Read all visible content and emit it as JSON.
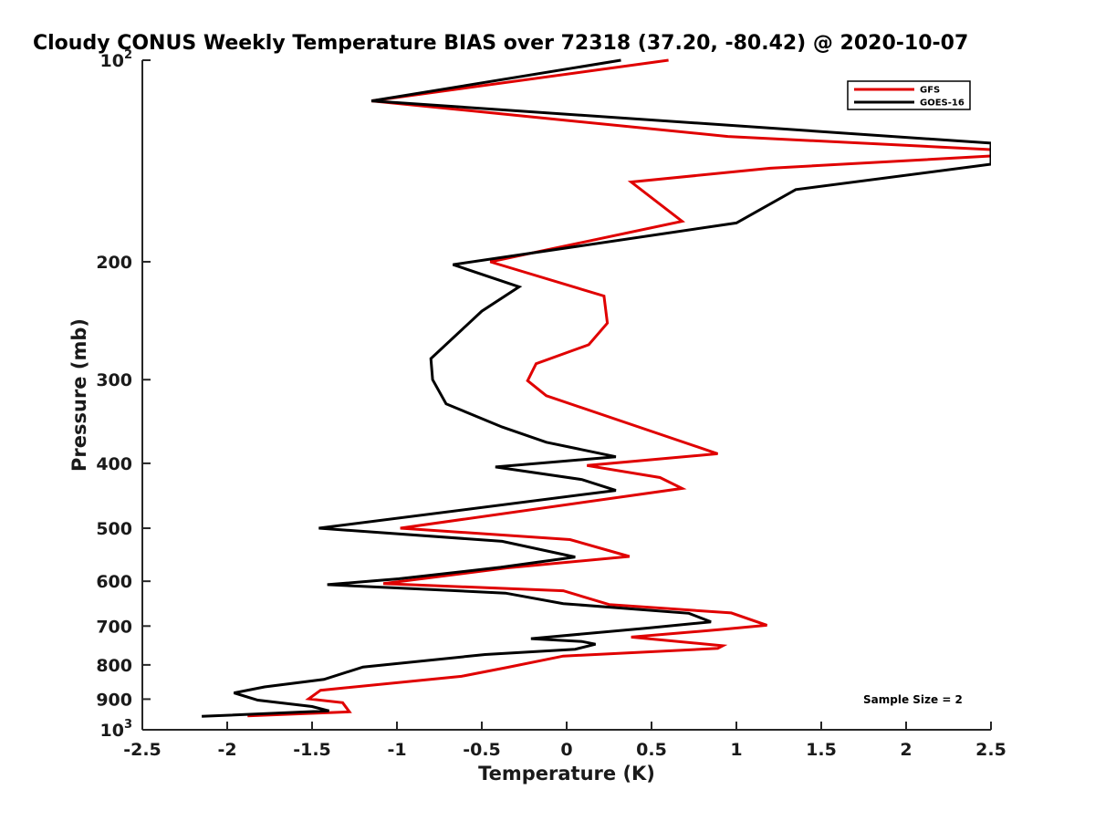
{
  "chart_data": {
    "type": "line",
    "title": "Cloudy CONUS Weekly Temperature BIAS over 72318 (37.20, -80.42) @ 2020-10-07",
    "xlabel": "Temperature (K)",
    "ylabel": "Pressure (mb)",
    "xlim": [
      -2.5,
      2.5
    ],
    "ylim": [
      100,
      1000
    ],
    "y_scale": "log",
    "y_reversed": true,
    "x_ticks": [
      -2.5,
      -2,
      -1.5,
      -1,
      -0.5,
      0,
      0.5,
      1,
      1.5,
      2,
      2.5
    ],
    "x_tick_labels": [
      "-2.5",
      "-2",
      "-1.5",
      "-1",
      "-0.5",
      "0",
      "0.5",
      "1",
      "1.5",
      "2",
      "2.5"
    ],
    "y_ticks": [
      100,
      200,
      300,
      400,
      500,
      600,
      700,
      800,
      900,
      1000
    ],
    "y_tick_labels": [
      {
        "base": "10",
        "exp": "2"
      },
      {
        "base": "200",
        "exp": ""
      },
      {
        "base": "300",
        "exp": ""
      },
      {
        "base": "400",
        "exp": ""
      },
      {
        "base": "500",
        "exp": ""
      },
      {
        "base": "600",
        "exp": ""
      },
      {
        "base": "700",
        "exp": ""
      },
      {
        "base": "800",
        "exp": ""
      },
      {
        "base": "900",
        "exp": ""
      },
      {
        "base": "10",
        "exp": "3"
      }
    ],
    "grid": false,
    "legend_position": "top-right",
    "annotation": "Sample Size = 2",
    "series": [
      {
        "name": "GFS",
        "color": "#e00000",
        "points": [
          {
            "x": 0.6,
            "p": 100
          },
          {
            "x": -1.15,
            "p": 115
          },
          {
            "x": 0.95,
            "p": 130
          },
          {
            "x": 2.5,
            "p": 136
          },
          {
            "x": 2.5,
            "p": 139
          },
          {
            "x": 1.2,
            "p": 145
          },
          {
            "x": 0.38,
            "p": 152
          },
          {
            "x": 0.68,
            "p": 174
          },
          {
            "x": -0.45,
            "p": 200
          },
          {
            "x": 0.22,
            "p": 225
          },
          {
            "x": 0.24,
            "p": 247
          },
          {
            "x": 0.13,
            "p": 266
          },
          {
            "x": -0.18,
            "p": 284
          },
          {
            "x": -0.23,
            "p": 301
          },
          {
            "x": -0.12,
            "p": 317
          },
          {
            "x": 0.89,
            "p": 387
          },
          {
            "x": 0.12,
            "p": 403
          },
          {
            "x": 0.55,
            "p": 420
          },
          {
            "x": 0.68,
            "p": 436
          },
          {
            "x": -0.98,
            "p": 500
          },
          {
            "x": 0.02,
            "p": 520
          },
          {
            "x": 0.37,
            "p": 551
          },
          {
            "x": -0.35,
            "p": 573
          },
          {
            "x": -1.08,
            "p": 605
          },
          {
            "x": -0.02,
            "p": 620
          },
          {
            "x": 0.25,
            "p": 650
          },
          {
            "x": 0.97,
            "p": 669
          },
          {
            "x": 1.18,
            "p": 698
          },
          {
            "x": 0.92,
            "p": 708
          },
          {
            "x": 0.38,
            "p": 727
          },
          {
            "x": 0.92,
            "p": 749
          },
          {
            "x": 0.89,
            "p": 756
          },
          {
            "x": -0.02,
            "p": 776
          },
          {
            "x": -0.35,
            "p": 807
          },
          {
            "x": -0.62,
            "p": 832
          },
          {
            "x": -1.45,
            "p": 873
          },
          {
            "x": -1.52,
            "p": 899
          },
          {
            "x": -1.32,
            "p": 911
          },
          {
            "x": -1.28,
            "p": 940
          },
          {
            "x": -1.88,
            "p": 953
          }
        ]
      },
      {
        "name": "GOES-16",
        "color": "#000000",
        "points": [
          {
            "x": 0.32,
            "p": 100
          },
          {
            "x": -1.15,
            "p": 115
          },
          {
            "x": 2.5,
            "p": 133
          },
          {
            "x": 2.5,
            "p": 143
          },
          {
            "x": 1.35,
            "p": 156
          },
          {
            "x": 1.0,
            "p": 175
          },
          {
            "x": -0.67,
            "p": 202
          },
          {
            "x": -0.28,
            "p": 218
          },
          {
            "x": -0.5,
            "p": 237
          },
          {
            "x": -0.8,
            "p": 279
          },
          {
            "x": -0.79,
            "p": 300
          },
          {
            "x": -0.71,
            "p": 326
          },
          {
            "x": -0.38,
            "p": 353
          },
          {
            "x": -0.12,
            "p": 372
          },
          {
            "x": 0.29,
            "p": 391
          },
          {
            "x": -0.42,
            "p": 405
          },
          {
            "x": 0.09,
            "p": 423
          },
          {
            "x": 0.29,
            "p": 439
          },
          {
            "x": -1.46,
            "p": 500
          },
          {
            "x": -0.38,
            "p": 523
          },
          {
            "x": 0.05,
            "p": 552
          },
          {
            "x": -0.39,
            "p": 572
          },
          {
            "x": -0.99,
            "p": 595
          },
          {
            "x": -1.41,
            "p": 607
          },
          {
            "x": -0.36,
            "p": 625
          },
          {
            "x": -0.02,
            "p": 648
          },
          {
            "x": 0.72,
            "p": 670
          },
          {
            "x": 0.85,
            "p": 690
          },
          {
            "x": 0.47,
            "p": 705
          },
          {
            "x": -0.21,
            "p": 731
          },
          {
            "x": 0.09,
            "p": 738
          },
          {
            "x": 0.17,
            "p": 745
          },
          {
            "x": 0.05,
            "p": 758
          },
          {
            "x": -0.48,
            "p": 772
          },
          {
            "x": -1.2,
            "p": 806
          },
          {
            "x": -1.43,
            "p": 841
          },
          {
            "x": -1.78,
            "p": 863
          },
          {
            "x": -1.96,
            "p": 881
          },
          {
            "x": -1.82,
            "p": 903
          },
          {
            "x": -1.5,
            "p": 923
          },
          {
            "x": -1.4,
            "p": 937
          },
          {
            "x": -2.15,
            "p": 955
          }
        ]
      }
    ]
  }
}
